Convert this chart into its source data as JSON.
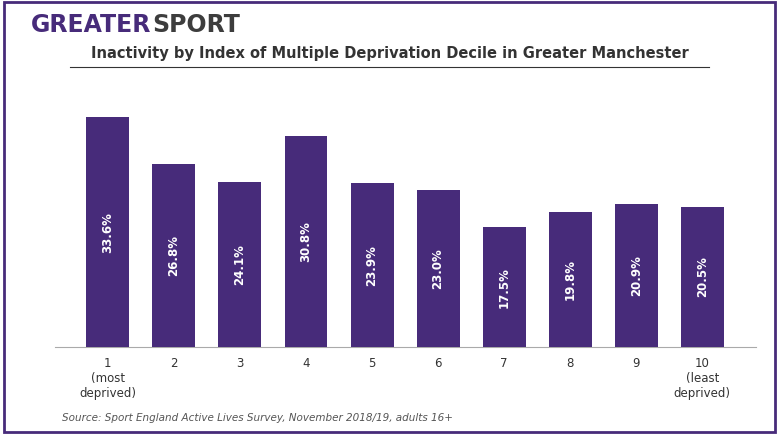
{
  "title": "Inactivity by Index of Multiple Deprivation Decile in Greater Manchester",
  "categories": [
    "1",
    "2",
    "3",
    "4",
    "5",
    "6",
    "7",
    "8",
    "9",
    "10"
  ],
  "values": [
    33.6,
    26.8,
    24.1,
    30.8,
    23.9,
    23.0,
    17.5,
    19.8,
    20.9,
    20.5
  ],
  "bar_color": "#472B7A",
  "text_color_white": "#FFFFFF",
  "title_color": "#333333",
  "tick_labels": [
    "1\n(most\ndeprived)",
    "2",
    "3",
    "4",
    "5",
    "6",
    "7",
    "8",
    "9",
    "10\n(least\ndeprived)"
  ],
  "source_text": "Source: Sport England Active Lives Survey, November 2018/19, adults 16+",
  "logo_greater": "GREATER",
  "logo_sport": "SPORT",
  "logo_greater_color": "#472B7A",
  "logo_sport_color": "#3D3D3D",
  "border_color": "#472B7A",
  "background_color": "#FFFFFF",
  "ylim": [
    0,
    38
  ]
}
